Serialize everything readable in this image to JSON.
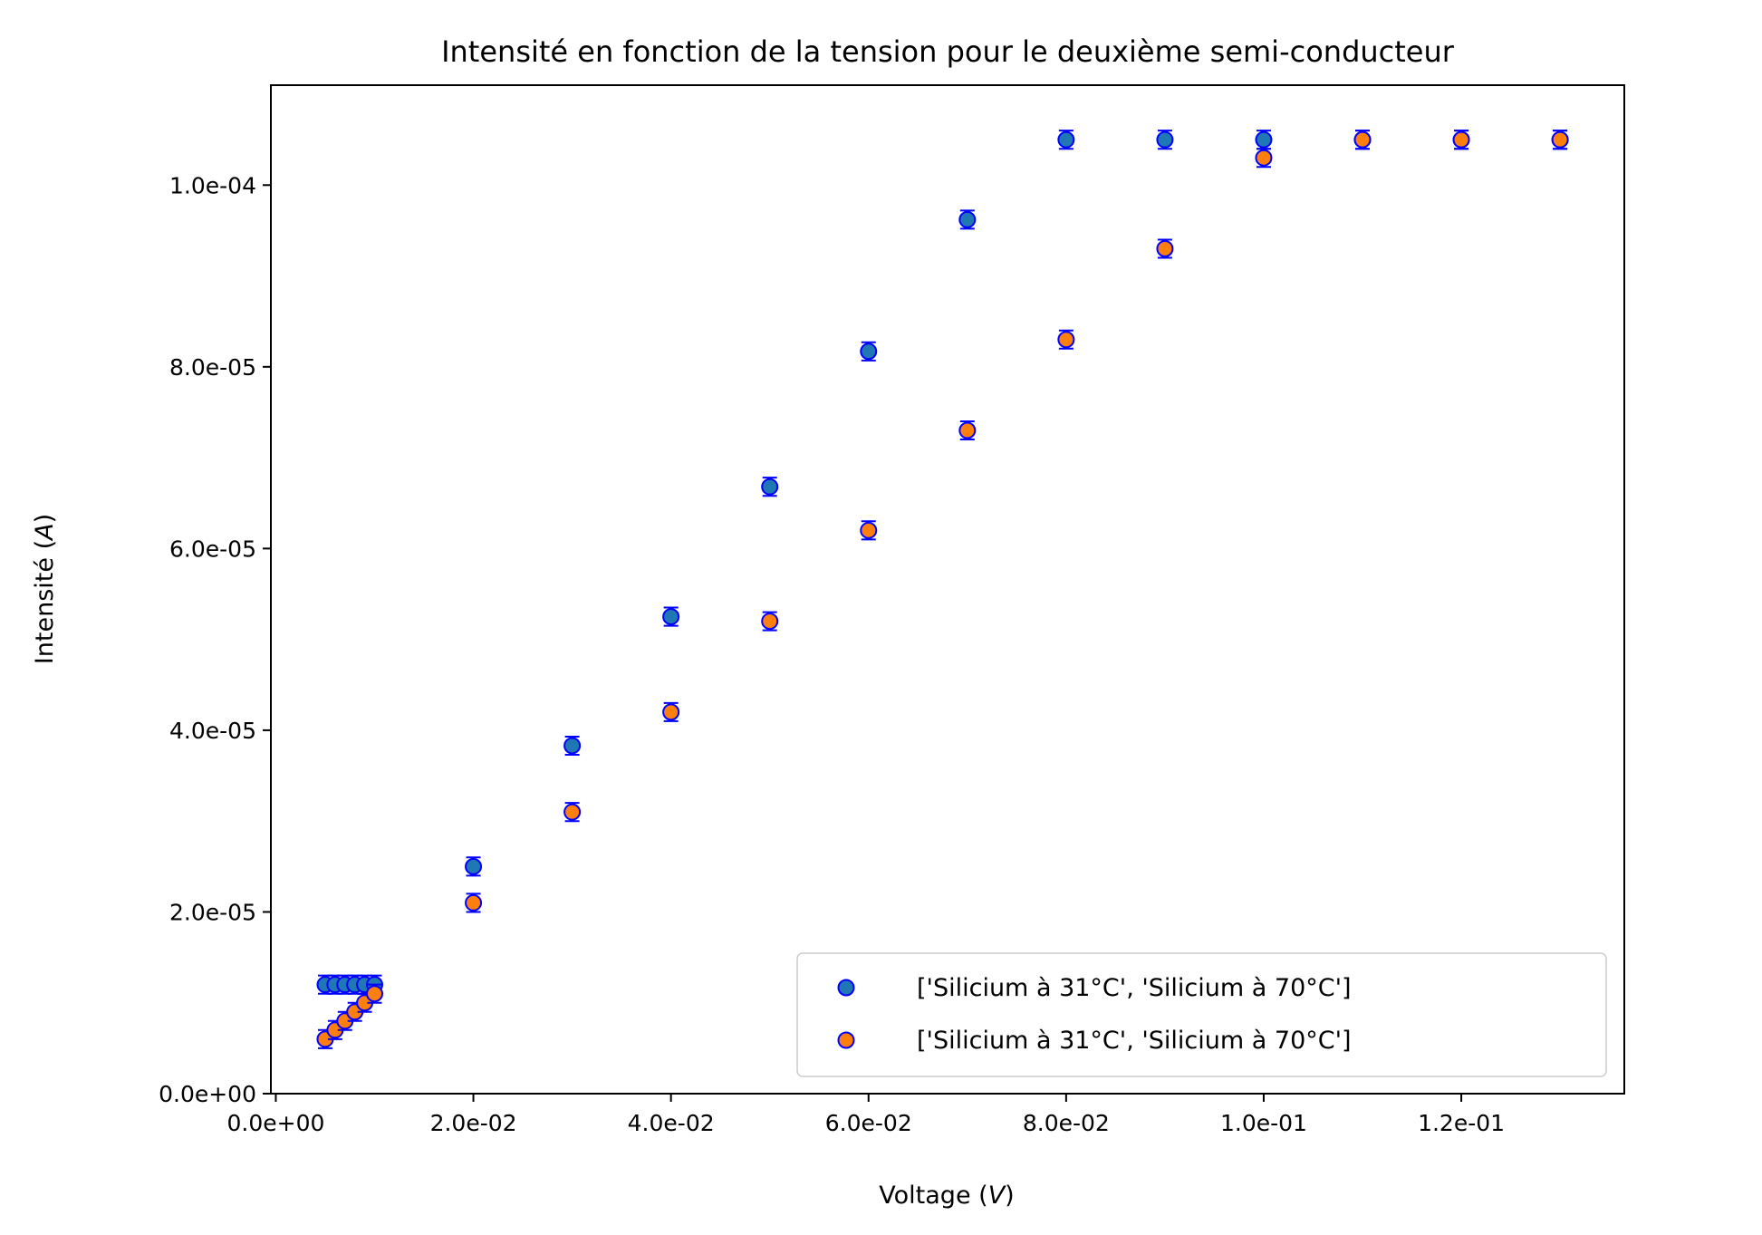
{
  "chart_data": {
    "type": "scatter",
    "title": "Intensité en fonction de la tension pour le deuxième semi-conducteur",
    "xlabel": {
      "text": "Voltage (",
      "symbol": "V",
      "end": ")"
    },
    "ylabel": {
      "text": "Intensité (",
      "symbol": "A",
      "end": ")"
    },
    "xlim": [
      -0.0005,
      0.1365
    ],
    "ylim": [
      0,
      0.000111
    ],
    "xticks": [
      {
        "value": 0,
        "label": "0.0e+00"
      },
      {
        "value": 0.02,
        "label": "2.0e-02"
      },
      {
        "value": 0.04,
        "label": "4.0e-02"
      },
      {
        "value": 0.06,
        "label": "6.0e-02"
      },
      {
        "value": 0.08,
        "label": "8.0e-02"
      },
      {
        "value": 0.1,
        "label": "1.0e-01"
      },
      {
        "value": 0.12,
        "label": "1.2e-01"
      }
    ],
    "yticks": [
      {
        "value": 0,
        "label": "0.0e+00"
      },
      {
        "value": 2e-05,
        "label": "2.0e-05"
      },
      {
        "value": 4e-05,
        "label": "4.0e-05"
      },
      {
        "value": 6e-05,
        "label": "6.0e-05"
      },
      {
        "value": 8e-05,
        "label": "8.0e-05"
      },
      {
        "value": 0.0001,
        "label": "1.0e-04"
      }
    ],
    "grid": false,
    "legend_position": "lower-right",
    "series": [
      {
        "name": "['Silicium à 31°C', 'Silicium à 70°C']",
        "color": "#1f77b4",
        "edge_color": "#0000ff",
        "yerr": 1e-06,
        "x": [
          0.005,
          0.006,
          0.007,
          0.008,
          0.009,
          0.01,
          0.02,
          0.03,
          0.04,
          0.05,
          0.06,
          0.07,
          0.08,
          0.09,
          0.1,
          0.11,
          0.12,
          0.13
        ],
        "y": [
          1.2e-05,
          1.2e-05,
          1.2e-05,
          1.2e-05,
          1.2e-05,
          1.2e-05,
          2.5e-05,
          3.83e-05,
          5.25e-05,
          6.68e-05,
          8.17e-05,
          9.62e-05,
          0.000105,
          0.000105,
          0.000105,
          0.000105,
          0.000105,
          0.000105
        ]
      },
      {
        "name": "['Silicium à 31°C', 'Silicium à 70°C']",
        "color": "#ff7f0e",
        "edge_color": "#0000ff",
        "yerr": 1e-06,
        "x": [
          0.005,
          0.006,
          0.007,
          0.008,
          0.009,
          0.01,
          0.02,
          0.03,
          0.04,
          0.05,
          0.06,
          0.07,
          0.08,
          0.09,
          0.1,
          0.11,
          0.12,
          0.13
        ],
        "y": [
          6e-06,
          7e-06,
          8e-06,
          9e-06,
          1e-05,
          1.1e-05,
          2.1e-05,
          3.1e-05,
          4.2e-05,
          5.2e-05,
          6.2e-05,
          7.3e-05,
          8.3e-05,
          9.3e-05,
          0.000103,
          0.000105,
          0.000105,
          0.000105
        ]
      }
    ]
  }
}
